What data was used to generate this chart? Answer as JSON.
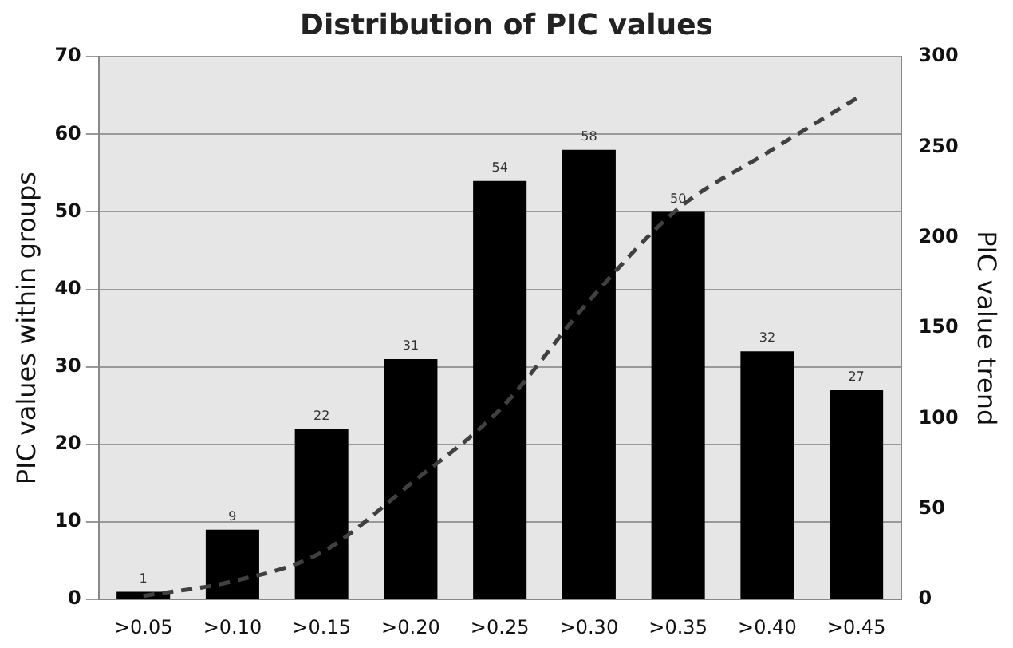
{
  "chart_data": {
    "type": "bar",
    "title": "Distribution of PIC values",
    "ylabel": "PIC values within groups",
    "y2label": "PIC value trend",
    "categories": [
      ">0.05",
      ">0.10",
      ">0.15",
      ">0.20",
      ">0.25",
      ">0.30",
      ">0.35",
      ">0.40",
      ">0.45"
    ],
    "series": [
      {
        "color": "#000000",
        "values": [
          1,
          9,
          22,
          31,
          54,
          58,
          50,
          32,
          27
        ],
        "value_labels": [
          "1",
          "9",
          "22",
          "31",
          "54",
          "58",
          "50",
          "32",
          "27"
        ]
      },
      {
        "type": "line",
        "axis": "y2",
        "color": "#404040",
        "line_style": "dashed",
        "marker": "none",
        "values": [
          2,
          10,
          26,
          64,
          105,
          165,
          216,
          247,
          277
        ]
      }
    ],
    "ylim": [
      0,
      70
    ],
    "yticks": [
      0,
      10,
      20,
      30,
      40,
      50,
      60,
      70
    ],
    "y2lim": [
      0,
      300
    ],
    "y2ticks": [
      0,
      50,
      100,
      150,
      200,
      250,
      300
    ],
    "grid": "y",
    "legend": false
  }
}
